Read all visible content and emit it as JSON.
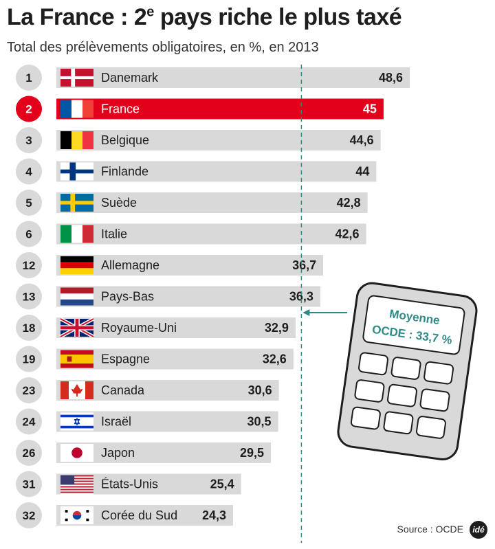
{
  "title_main": "La France : 2",
  "title_sup": "e",
  "title_rest": " pays riche le plus taxé",
  "subtitle": "Total des prélèvements obligatoires, en %, en 2013",
  "source": "Source : OCDE",
  "logo": "idé",
  "colors": {
    "bar": "#d9d9d9",
    "highlight": "#e2001a",
    "rank_bg": "#d9d9d9",
    "accent": "#2f8a86"
  },
  "chart_data": {
    "type": "bar",
    "orientation": "horizontal",
    "categories": [
      "Danemark",
      "France",
      "Belgique",
      "Finlande",
      "Suède",
      "Italie",
      "Allemagne",
      "Pays-Bas",
      "Royaume-Uni",
      "Espagne",
      "Canada",
      "Israël",
      "Japon",
      "États-Unis",
      "Corée du Sud"
    ],
    "ranks": [
      "1",
      "2",
      "3",
      "4",
      "5",
      "6",
      "12",
      "13",
      "18",
      "19",
      "23",
      "24",
      "26",
      "31",
      "32"
    ],
    "values": [
      48.6,
      45,
      44.6,
      44,
      42.8,
      42.6,
      36.7,
      36.3,
      32.9,
      32.6,
      30.6,
      30.5,
      29.5,
      25.4,
      24.3
    ],
    "value_labels": [
      "48,6",
      "45",
      "44,6",
      "44",
      "42,8",
      "42,6",
      "36,7",
      "36,3",
      "32,9",
      "32,6",
      "30,6",
      "30,5",
      "29,5",
      "25,4",
      "24,3"
    ],
    "flags": [
      "dk",
      "fr",
      "be",
      "fi",
      "se",
      "it",
      "de",
      "nl",
      "gb",
      "es",
      "ca",
      "il",
      "jp",
      "us",
      "kr"
    ],
    "highlight_index": 1,
    "reference": {
      "value": 33.7,
      "label_line1": "Moyenne",
      "label_line2": "OCDE : 33,7 %"
    }
  }
}
